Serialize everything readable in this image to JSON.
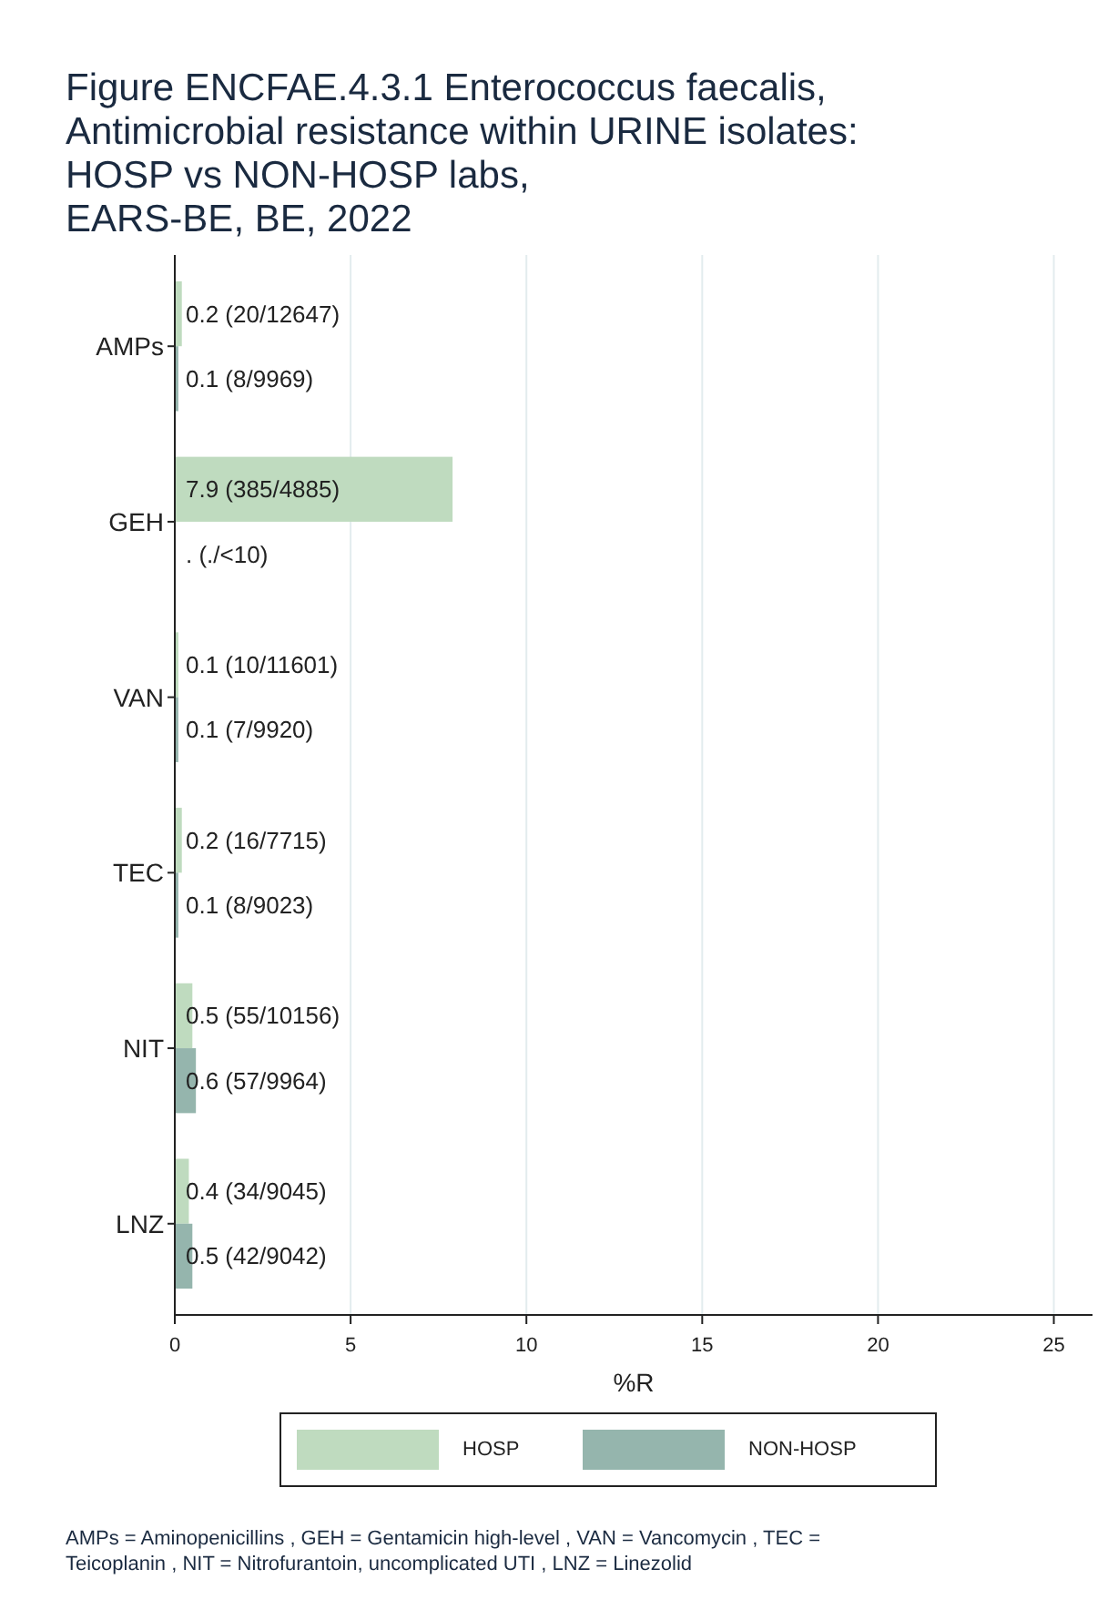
{
  "chart_data": {
    "type": "bar",
    "orientation": "horizontal",
    "title": "Figure ENCFAE.4.3.1 Enterococcus faecalis,\nAntimicrobial resistance within URINE isolates:\nHOSP vs NON-HOSP labs,\nEARS-BE, BE, 2022",
    "xlabel": "%R",
    "categories": [
      "AMPs",
      "GEH",
      "VAN",
      "TEC",
      "NIT",
      "LNZ"
    ],
    "series": [
      {
        "name": "HOSP",
        "color": "#bfdbbf",
        "values": [
          0.2,
          7.9,
          0.1,
          0.2,
          0.5,
          0.4
        ],
        "value_labels": [
          "0.2 (20/12647)",
          "7.9 (385/4885)",
          "0.1 (10/11601)",
          "0.2 (16/7715)",
          "0.5 (55/10156)",
          "0.4 (34/9045)"
        ]
      },
      {
        "name": "NON-HOSP",
        "color": "#95b5ad",
        "values": [
          0.1,
          null,
          0.1,
          0.1,
          0.6,
          0.5
        ],
        "value_labels": [
          "0.1 (8/9969)",
          ". (./<10)",
          "0.1 (7/9920)",
          "0.1 (8/9023)",
          "0.6 (57/9964)",
          "0.5 (42/9042)"
        ]
      }
    ],
    "xlim": [
      0,
      26.1
    ],
    "xticks": [
      0,
      5,
      10,
      15,
      20,
      25
    ],
    "grid": "x",
    "legend": "bottom",
    "annotations": [
      "AMPs = Aminopenicillins , GEH = Gentamicin high-level , VAN = Vancomycin , TEC = Teicoplanin , NIT = Nitrofurantoin, uncomplicated UTI , LNZ = Linezolid"
    ]
  }
}
